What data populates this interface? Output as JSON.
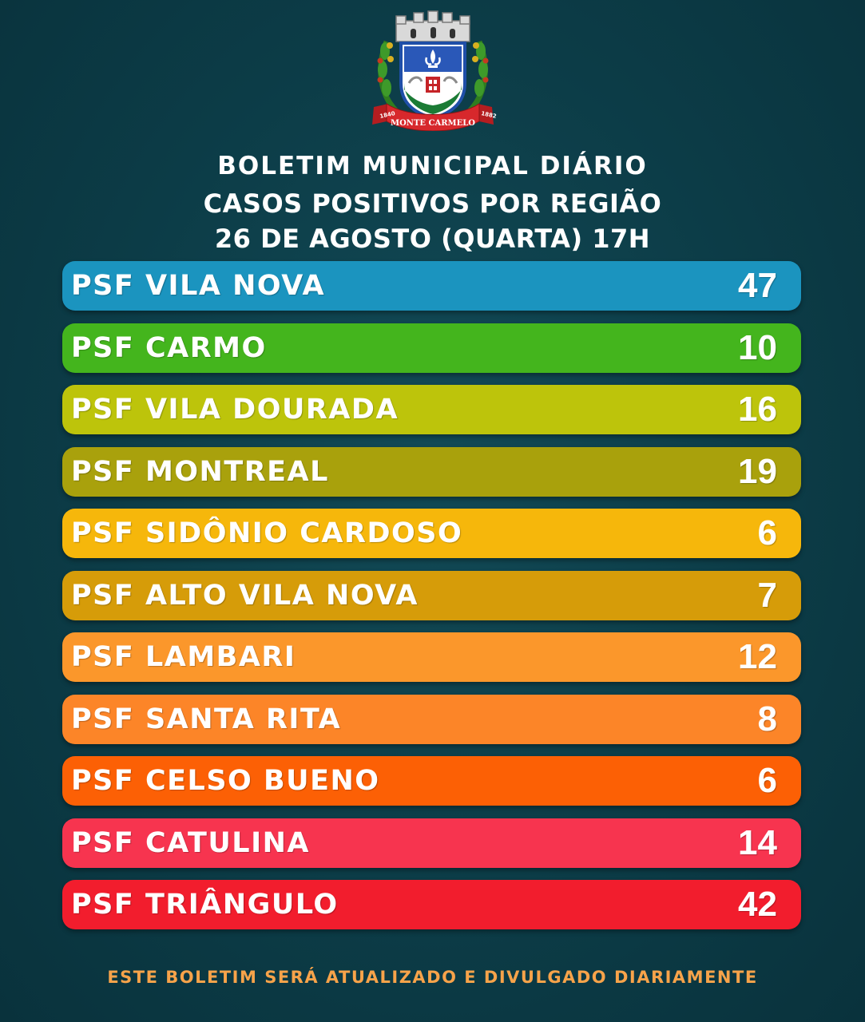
{
  "logo": {
    "ribbon_text": "1840 MONTE CARMELO 1882",
    "ribbon_left": "1840",
    "ribbon_center": "MONTE CARMELO",
    "ribbon_right": "1882"
  },
  "header": {
    "line1": "BOLETIM MUNICIPAL DIÁRIO",
    "line2": "CASOS POSITIVOS POR REGIÃO",
    "line3": "26 DE AGOSTO (QUARTA) 17H"
  },
  "regions": [
    {
      "label": "PSF VILA NOVA",
      "value": "47",
      "color": "#1b94bf"
    },
    {
      "label": "PSF CARMO",
      "value": "10",
      "color": "#44b51d"
    },
    {
      "label": "PSF VILA DOURADA",
      "value": "16",
      "color": "#bdc40b"
    },
    {
      "label": "PSF MONTREAL",
      "value": "19",
      "color": "#a9a10c"
    },
    {
      "label": "PSF SIDÔNIO CARDOSO",
      "value": "6",
      "color": "#f6b70b"
    },
    {
      "label": "PSF ALTO VILA NOVA",
      "value": "7",
      "color": "#d69c09"
    },
    {
      "label": "PSF LAMBARI",
      "value": "12",
      "color": "#fb972b"
    },
    {
      "label": "PSF SANTA RITA",
      "value": "8",
      "color": "#fc8528"
    },
    {
      "label": "PSF CELSO BUENO",
      "value": "6",
      "color": "#fc6005"
    },
    {
      "label": "PSF CATULINA",
      "value": "14",
      "color": "#f7344f"
    },
    {
      "label": "PSF TRIÂNGULO",
      "value": "42",
      "color": "#f21d2d"
    }
  ],
  "footer": {
    "text": "ESTE BOLETIM SERÁ ATUALIZADO E DIVULGADO DIARIAMENTE",
    "color": "#f7a34a"
  },
  "background_color": "#0c3c47"
}
